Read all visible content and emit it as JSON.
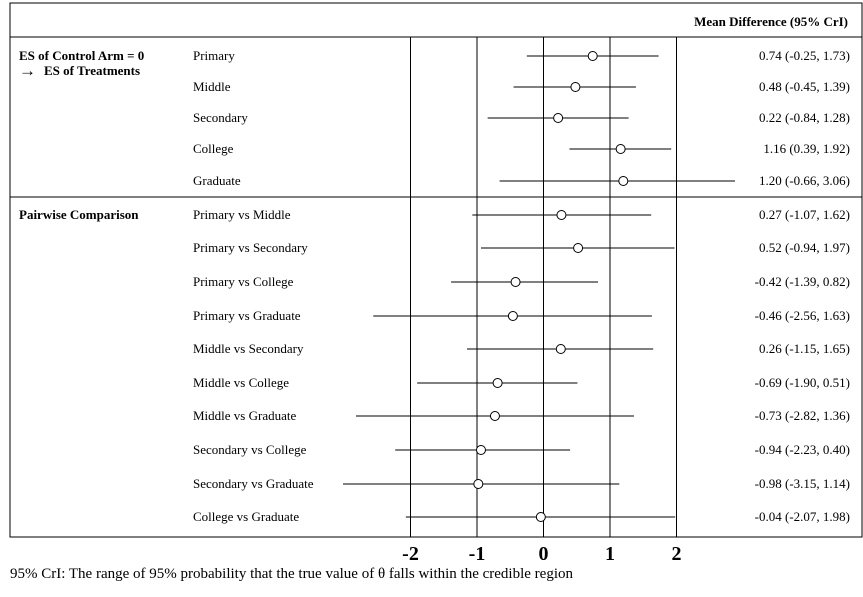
{
  "chart_data": {
    "type": "forest",
    "column_header": "Mean Difference (95% CrI)",
    "x_ticks": [
      "-2",
      "-1",
      "0",
      "1",
      "2"
    ],
    "x_ticks_values": [
      -2,
      -1,
      0,
      1,
      2
    ],
    "xlim": [
      -2.0,
      2.0
    ],
    "groups": [
      {
        "name": "ES of Control Arm = 0",
        "subtitle": "ES of Treatments",
        "arrow": "→",
        "rows": [
          {
            "label": "Primary",
            "mean": 0.74,
            "lower": -0.25,
            "upper": 1.73,
            "text": "0.74 (-0.25, 1.73)"
          },
          {
            "label": "Middle",
            "mean": 0.48,
            "lower": -0.45,
            "upper": 1.39,
            "text": "0.48 (-0.45, 1.39)"
          },
          {
            "label": "Secondary",
            "mean": 0.22,
            "lower": -0.84,
            "upper": 1.28,
            "text": "0.22 (-0.84, 1.28)"
          },
          {
            "label": "College",
            "mean": 1.16,
            "lower": 0.39,
            "upper": 1.92,
            "text": "1.16 (0.39, 1.92)"
          },
          {
            "label": "Graduate",
            "mean": 1.2,
            "lower": -0.66,
            "upper": 3.06,
            "text": "1.20 (-0.66, 3.06)"
          }
        ]
      },
      {
        "name": "Pairwise Comparison",
        "subtitle": "",
        "rows": [
          {
            "label": "Primary vs Middle",
            "mean": 0.27,
            "lower": -1.07,
            "upper": 1.62,
            "text": "0.27 (-1.07, 1.62)"
          },
          {
            "label": "Primary vs Secondary",
            "mean": 0.52,
            "lower": -0.94,
            "upper": 1.97,
            "text": "0.52 (-0.94, 1.97)"
          },
          {
            "label": "Primary vs College",
            "mean": -0.42,
            "lower": -1.39,
            "upper": 0.82,
            "text": "-0.42 (-1.39, 0.82)"
          },
          {
            "label": "Primary vs Graduate",
            "mean": -0.46,
            "lower": -2.56,
            "upper": 1.63,
            "text": "-0.46 (-2.56, 1.63)"
          },
          {
            "label": "Middle vs Secondary",
            "mean": 0.26,
            "lower": -1.15,
            "upper": 1.65,
            "text": "0.26 (-1.15, 1.65)"
          },
          {
            "label": "Middle vs College",
            "mean": -0.69,
            "lower": -1.9,
            "upper": 0.51,
            "text": "-0.69 (-1.90, 0.51)"
          },
          {
            "label": "Middle vs Graduate",
            "mean": -0.73,
            "lower": -2.82,
            "upper": 1.36,
            "text": "-0.73 (-2.82, 1.36)"
          },
          {
            "label": "Secondary vs College",
            "mean": -0.94,
            "lower": -2.23,
            "upper": 0.4,
            "text": "-0.94 (-2.23, 0.40)"
          },
          {
            "label": "Secondary vs Graduate",
            "mean": -0.98,
            "lower": -3.15,
            "upper": 1.14,
            "text": "-0.98 (-3.15, 1.14)"
          },
          {
            "label": "College vs Graduate",
            "mean": -0.04,
            "lower": -2.07,
            "upper": 1.98,
            "text": "-0.04 (-2.07, 1.98)"
          }
        ]
      }
    ],
    "grid": true
  },
  "footnote": "95% CrI: The range of 95% probability that the true value of θ falls within the credible region"
}
